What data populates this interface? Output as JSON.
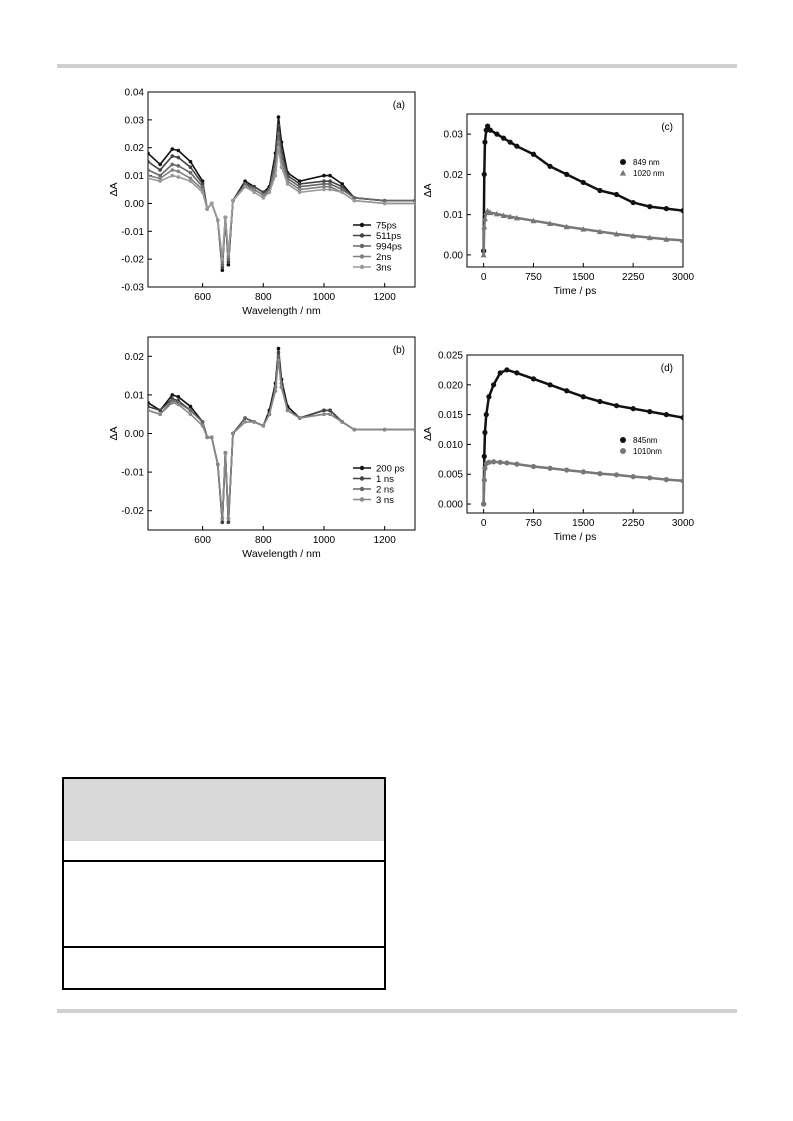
{
  "chart_data": [
    {
      "id": "a",
      "type": "line",
      "panel_label": "(a)",
      "xlabel": "Wavelength / nm",
      "ylabel": "ΔA",
      "xlim": [
        420,
        1300
      ],
      "ylim": [
        -0.03,
        0.04
      ],
      "xticks": [
        600,
        800,
        1000,
        1200
      ],
      "yticks": [
        -0.03,
        -0.02,
        -0.01,
        0.0,
        0.01,
        0.02,
        0.03,
        0.04
      ],
      "ytick_labels": [
        "-0.03",
        "-0.02",
        "-0.01",
        "0.00",
        "0.01",
        "0.02",
        "0.03",
        "0.04"
      ],
      "legend_position": "lower-right",
      "x": [
        420,
        460,
        500,
        520,
        560,
        600,
        615,
        630,
        650,
        665,
        675,
        685,
        700,
        740,
        770,
        800,
        820,
        840,
        850,
        860,
        880,
        920,
        1000,
        1020,
        1060,
        1100,
        1200,
        1300
      ],
      "series": [
        {
          "name": "75ps",
          "color": "#111111",
          "values": [
            0.018,
            0.014,
            0.0195,
            0.019,
            0.015,
            0.008,
            -0.002,
            0.0,
            -0.006,
            -0.024,
            -0.005,
            -0.022,
            0.001,
            0.008,
            0.006,
            0.004,
            0.006,
            0.018,
            0.031,
            0.022,
            0.011,
            0.008,
            0.01,
            0.01,
            0.007,
            0.002,
            0.001,
            0.001
          ]
        },
        {
          "name": "511ps",
          "color": "#444444",
          "values": [
            0.015,
            0.012,
            0.017,
            0.0165,
            0.013,
            0.007,
            -0.002,
            0.0,
            -0.006,
            -0.023,
            -0.005,
            -0.021,
            0.001,
            0.007,
            0.006,
            0.004,
            0.005,
            0.016,
            0.028,
            0.019,
            0.01,
            0.007,
            0.008,
            0.008,
            0.006,
            0.002,
            0.001,
            0.001
          ]
        },
        {
          "name": "994ps",
          "color": "#666666",
          "values": [
            0.012,
            0.01,
            0.014,
            0.0135,
            0.011,
            0.006,
            -0.002,
            0.0,
            -0.006,
            -0.022,
            -0.005,
            -0.02,
            0.001,
            0.007,
            0.005,
            0.003,
            0.005,
            0.014,
            0.025,
            0.017,
            0.009,
            0.006,
            0.007,
            0.007,
            0.005,
            0.002,
            0.001,
            0.001
          ]
        },
        {
          "name": "2ns",
          "color": "#808080",
          "values": [
            0.01,
            0.009,
            0.012,
            0.0115,
            0.009,
            0.005,
            -0.002,
            0.0,
            -0.006,
            -0.021,
            -0.005,
            -0.019,
            0.001,
            0.006,
            0.005,
            0.003,
            0.004,
            0.012,
            0.022,
            0.015,
            0.008,
            0.005,
            0.006,
            0.006,
            0.004,
            0.001,
            0.0,
            0.0
          ]
        },
        {
          "name": "3ns",
          "color": "#999999",
          "values": [
            0.009,
            0.008,
            0.01,
            0.0095,
            0.008,
            0.004,
            -0.002,
            0.0,
            -0.006,
            -0.02,
            -0.005,
            -0.018,
            0.001,
            0.006,
            0.004,
            0.002,
            0.004,
            0.01,
            0.02,
            0.013,
            0.007,
            0.004,
            0.005,
            0.005,
            0.004,
            0.001,
            0.0,
            0.0
          ]
        }
      ]
    },
    {
      "id": "b",
      "type": "line",
      "panel_label": "(b)",
      "xlabel": "Wavelength / nm",
      "ylabel": "ΔA",
      "xlim": [
        420,
        1300
      ],
      "ylim": [
        -0.025,
        0.025
      ],
      "xticks": [
        600,
        800,
        1000,
        1200
      ],
      "yticks": [
        -0.02,
        -0.01,
        0.0,
        0.01,
        0.02
      ],
      "ytick_labels": [
        "-0.02",
        "-0.01",
        "0.00",
        "0.01",
        "0.02"
      ],
      "legend_position": "lower-right",
      "x": [
        420,
        460,
        500,
        520,
        560,
        600,
        615,
        630,
        650,
        665,
        675,
        685,
        700,
        740,
        770,
        800,
        820,
        840,
        850,
        860,
        880,
        920,
        1000,
        1020,
        1060,
        1100,
        1200,
        1300
      ],
      "series": [
        {
          "name": "200 ps",
          "color": "#111111",
          "values": [
            0.008,
            0.006,
            0.01,
            0.0095,
            0.007,
            0.003,
            -0.001,
            -0.001,
            -0.008,
            -0.023,
            -0.005,
            -0.023,
            0.0,
            0.004,
            0.003,
            0.002,
            0.006,
            0.013,
            0.022,
            0.014,
            0.007,
            0.004,
            0.006,
            0.006,
            0.003,
            0.001,
            0.001,
            0.001
          ]
        },
        {
          "name": "1 ns",
          "color": "#444444",
          "values": [
            0.007,
            0.006,
            0.009,
            0.0085,
            0.006,
            0.003,
            -0.001,
            -0.001,
            -0.008,
            -0.023,
            -0.005,
            -0.023,
            0.0,
            0.004,
            0.003,
            0.002,
            0.005,
            0.012,
            0.021,
            0.013,
            0.006,
            0.004,
            0.006,
            0.006,
            0.003,
            0.001,
            0.001,
            0.001
          ]
        },
        {
          "name": "2 ns",
          "color": "#666666",
          "values": [
            0.006,
            0.005,
            0.0085,
            0.008,
            0.006,
            0.003,
            -0.001,
            -0.001,
            -0.008,
            -0.022,
            -0.005,
            -0.022,
            0.0,
            0.004,
            0.003,
            0.002,
            0.005,
            0.012,
            0.02,
            0.012,
            0.006,
            0.004,
            0.005,
            0.005,
            0.003,
            0.001,
            0.001,
            0.001
          ]
        },
        {
          "name": "3 ns",
          "color": "#888888",
          "values": [
            0.006,
            0.005,
            0.008,
            0.0075,
            0.005,
            0.002,
            -0.001,
            -0.001,
            -0.008,
            -0.022,
            -0.005,
            -0.022,
            0.0,
            0.003,
            0.003,
            0.002,
            0.005,
            0.011,
            0.019,
            0.012,
            0.006,
            0.004,
            0.005,
            0.005,
            0.003,
            0.001,
            0.001,
            0.001
          ]
        }
      ]
    },
    {
      "id": "c",
      "type": "scatter",
      "panel_label": "(c)",
      "xlabel": "Time / ps",
      "ylabel": "ΔA",
      "xlim": [
        -250,
        3000
      ],
      "ylim": [
        -0.003,
        0.035
      ],
      "xticks": [
        0,
        750,
        1500,
        2250,
        3000
      ],
      "yticks": [
        0.0,
        0.01,
        0.02,
        0.03
      ],
      "ytick_labels": [
        "0.00",
        "0.01",
        "0.02",
        "0.03"
      ],
      "legend_position": "upper-right",
      "x": [
        0,
        10,
        20,
        40,
        60,
        100,
        200,
        300,
        400,
        500,
        750,
        1000,
        1250,
        1500,
        1750,
        2000,
        2250,
        2500,
        2750,
        3000
      ],
      "series": [
        {
          "name": "849 nm",
          "color": "#111111",
          "marker": "circle",
          "values": [
            0.001,
            0.02,
            0.028,
            0.031,
            0.032,
            0.031,
            0.03,
            0.029,
            0.028,
            0.027,
            0.025,
            0.022,
            0.02,
            0.018,
            0.016,
            0.015,
            0.013,
            0.012,
            0.0115,
            0.011
          ]
        },
        {
          "name": "1020 nm",
          "color": "#777777",
          "marker": "triangle",
          "values": [
            0.0,
            0.007,
            0.009,
            0.0105,
            0.011,
            0.0105,
            0.0102,
            0.0098,
            0.0095,
            0.0092,
            0.0085,
            0.0078,
            0.007,
            0.0064,
            0.0058,
            0.0052,
            0.0047,
            0.0043,
            0.0039,
            0.0036
          ]
        }
      ]
    },
    {
      "id": "d",
      "type": "scatter",
      "panel_label": "(d)",
      "xlabel": "Time / ps",
      "ylabel": "ΔA",
      "xlim": [
        -250,
        3000
      ],
      "ylim": [
        -0.0015,
        0.025
      ],
      "xticks": [
        0,
        750,
        1500,
        2250,
        3000
      ],
      "yticks": [
        0.0,
        0.005,
        0.01,
        0.015,
        0.02,
        0.025
      ],
      "ytick_labels": [
        "0.000",
        "0.005",
        "0.010",
        "0.015",
        "0.020",
        "0.025"
      ],
      "legend_position": "middle-right",
      "x": [
        0,
        10,
        20,
        40,
        80,
        150,
        250,
        350,
        500,
        750,
        1000,
        1250,
        1500,
        1750,
        2000,
        2250,
        2500,
        2750,
        3000
      ],
      "series": [
        {
          "name": "845nm",
          "color": "#111111",
          "marker": "circle",
          "values": [
            0.0,
            0.008,
            0.012,
            0.015,
            0.018,
            0.02,
            0.022,
            0.0225,
            0.022,
            0.021,
            0.02,
            0.019,
            0.018,
            0.0172,
            0.0165,
            0.016,
            0.0155,
            0.015,
            0.0145
          ]
        },
        {
          "name": "1010nm",
          "color": "#777777",
          "marker": "circle",
          "values": [
            0.0,
            0.004,
            0.006,
            0.0068,
            0.007,
            0.0071,
            0.007,
            0.0069,
            0.0067,
            0.0063,
            0.006,
            0.0057,
            0.0054,
            0.0051,
            0.0049,
            0.0046,
            0.0044,
            0.0041,
            0.0039
          ]
        }
      ]
    }
  ]
}
